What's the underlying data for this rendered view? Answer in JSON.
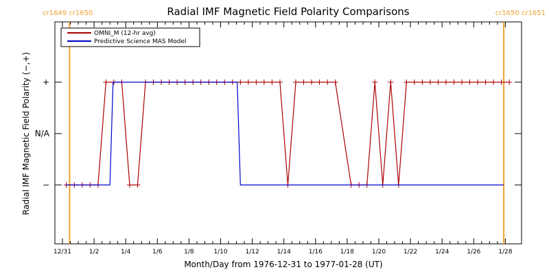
{
  "chart_data": {
    "type": "line",
    "title": "Radial IMF Magnetic Field Polarity Comparisons",
    "xlabel": "Month/Day from 1976-12-31 to 1977-01-28 (UT)",
    "ylabel": "Radial IMF Magnetic Field Polarity (−,+)",
    "x_unit": "days from 1976-12-31 00:00 UT",
    "xlim": [
      0,
      28.3
    ],
    "ylim": [
      -2,
      2
    ],
    "x_ticks": [
      {
        "x": 0,
        "label": "12/31"
      },
      {
        "x": 2,
        "label": "1/2"
      },
      {
        "x": 4,
        "label": "1/4"
      },
      {
        "x": 6,
        "label": "1/6"
      },
      {
        "x": 8,
        "label": "1/8"
      },
      {
        "x": 10,
        "label": "1/10"
      },
      {
        "x": 12,
        "label": "1/12"
      },
      {
        "x": 14,
        "label": "1/14"
      },
      {
        "x": 16,
        "label": "1/16"
      },
      {
        "x": 18,
        "label": "1/18"
      },
      {
        "x": 20,
        "label": "1/20"
      },
      {
        "x": 22,
        "label": "1/22"
      },
      {
        "x": 24,
        "label": "1/24"
      },
      {
        "x": 26,
        "label": "1/26"
      },
      {
        "x": 28,
        "label": "1/28"
      }
    ],
    "y_ticks": [
      {
        "y": 1,
        "label": "+"
      },
      {
        "y": 0,
        "label": "N/A"
      },
      {
        "y": -1,
        "label": "−"
      }
    ],
    "carrington_markers": [
      {
        "x": 0.45,
        "label": "cr1649 cr1650",
        "color": "#f0a030",
        "align": "left"
      },
      {
        "x": 27.9,
        "label": "cr1650 cr1651",
        "color": "#f0a030",
        "align": "right"
      }
    ],
    "series": [
      {
        "name": "OMNI_M (12-hr avg)",
        "color": "#aa0000",
        "marker": "plus",
        "points": [
          [
            0.25,
            -1
          ],
          [
            0.75,
            -1
          ],
          [
            1.25,
            -1
          ],
          [
            1.75,
            -1
          ],
          [
            2.25,
            -1
          ],
          [
            2.75,
            1
          ],
          [
            3.25,
            1
          ],
          [
            3.75,
            1
          ],
          [
            4.25,
            -1
          ],
          [
            4.75,
            -1
          ],
          [
            5.25,
            1
          ],
          [
            5.75,
            1
          ],
          [
            6.25,
            1
          ],
          [
            6.75,
            1
          ],
          [
            7.25,
            1
          ],
          [
            7.75,
            1
          ],
          [
            8.25,
            1
          ],
          [
            8.75,
            1
          ],
          [
            9.25,
            1
          ],
          [
            9.75,
            1
          ],
          [
            10.25,
            1
          ],
          [
            10.75,
            1
          ],
          [
            11.25,
            1
          ],
          [
            11.75,
            1
          ],
          [
            12.25,
            1
          ],
          [
            12.75,
            1
          ],
          [
            13.25,
            1
          ],
          [
            13.75,
            1
          ],
          [
            14.25,
            -1
          ],
          [
            14.75,
            1
          ],
          [
            15.25,
            1
          ],
          [
            15.75,
            1
          ],
          [
            16.25,
            1
          ],
          [
            16.75,
            1
          ],
          [
            17.25,
            1
          ],
          [
            18.25,
            -1
          ],
          [
            18.75,
            -1
          ],
          [
            19.25,
            -1
          ],
          [
            19.75,
            1
          ],
          [
            20.25,
            -1
          ],
          [
            20.75,
            1
          ],
          [
            21.25,
            -1
          ],
          [
            21.75,
            1
          ],
          [
            22.25,
            1
          ],
          [
            22.75,
            1
          ],
          [
            23.25,
            1
          ],
          [
            23.75,
            1
          ],
          [
            24.25,
            1
          ],
          [
            24.75,
            1
          ],
          [
            25.25,
            1
          ],
          [
            25.75,
            1
          ],
          [
            26.25,
            1
          ],
          [
            26.75,
            1
          ],
          [
            27.25,
            1
          ],
          [
            27.75,
            1
          ],
          [
            28.25,
            1
          ]
        ]
      },
      {
        "name": "Predictive Science MAS Model",
        "color": "#0000cc",
        "marker": "none",
        "points": [
          [
            0.2,
            -1
          ],
          [
            3.0,
            -1
          ],
          [
            3.2,
            1
          ],
          [
            11.05,
            1
          ],
          [
            11.25,
            -1
          ],
          [
            27.9,
            -1
          ]
        ]
      }
    ],
    "legend": "top-left",
    "grid": false
  }
}
